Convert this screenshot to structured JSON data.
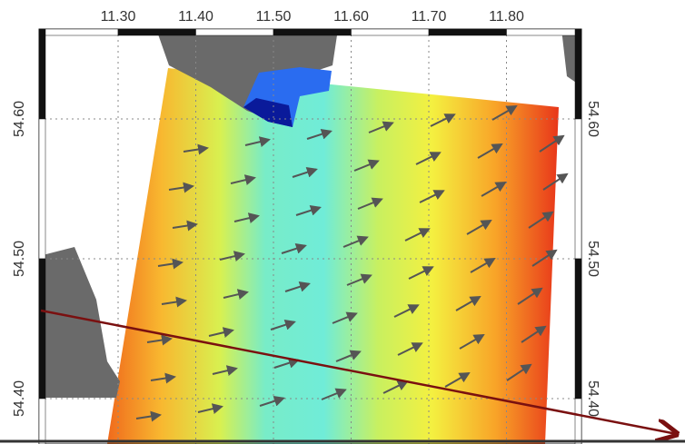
{
  "map": {
    "top_ticks": [
      "11.30",
      "11.40",
      "11.50",
      "11.60",
      "11.70",
      "11.80"
    ],
    "left_ticks": [
      "54.60",
      "54.50",
      "54.40"
    ],
    "right_ticks": [
      "54.60",
      "54.50",
      "54.40"
    ]
  }
}
